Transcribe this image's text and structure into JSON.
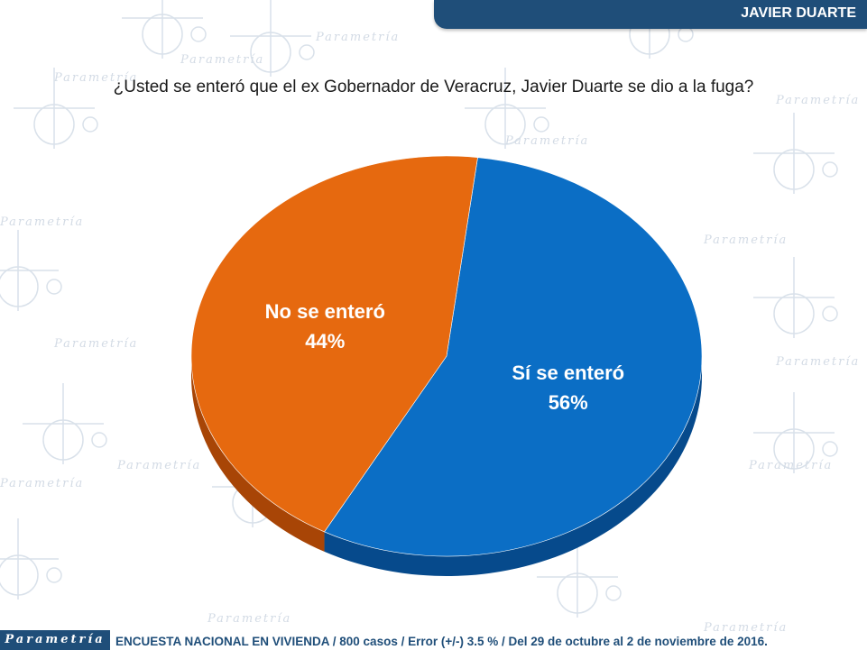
{
  "header": {
    "title": "JAVIER DUARTE"
  },
  "question": "¿Usted se enteró que el ex Gobernador de Veracruz, Javier Duarte se dio a la fuga?",
  "footer": {
    "brand": "Parametría",
    "note": "ENCUESTA NACIONAL EN VIVIENDA / 800 casos / Error (+/-) 3.5 % / Del 29 de octubre al 2 de noviembre de 2016."
  },
  "watermark": {
    "text": "Parametría"
  },
  "colors": {
    "header_bg": "#1f4e79",
    "si": "#0b6ec5",
    "si_side": "#064a8c",
    "no": "#e6690f",
    "no_side": "#a84506"
  },
  "chart_data": {
    "type": "pie",
    "style": "3d",
    "slices": [
      {
        "label": "Sí se enteró",
        "value": 56,
        "display": "56%",
        "color": "#0b6ec5"
      },
      {
        "label": "No se enteró",
        "value": 44,
        "display": "44%",
        "color": "#e6690f"
      }
    ]
  }
}
